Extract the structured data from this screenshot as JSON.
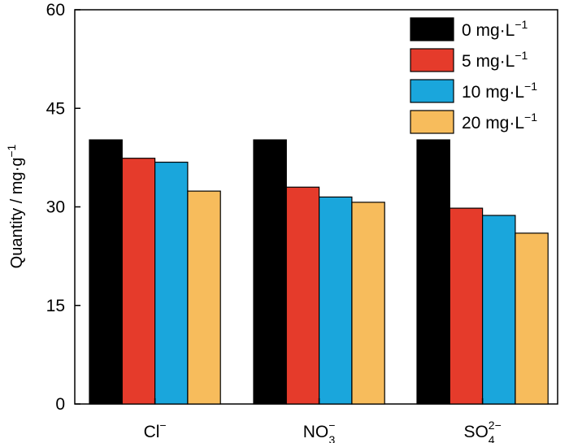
{
  "chart_data": {
    "type": "bar",
    "title": "",
    "xlabel": "",
    "ylabel": "Quantity / mg·g",
    "ylabel_sup": "−1",
    "ylim": [
      0,
      60
    ],
    "yticks": [
      "0",
      "15",
      "30",
      "45",
      "60"
    ],
    "categories": [
      {
        "base": "Cl",
        "sub": "",
        "sup": "−"
      },
      {
        "base": "NO",
        "sub": "3",
        "sup": "−"
      },
      {
        "base": "SO",
        "sub": "4",
        "sup": "2−"
      }
    ],
    "series": [
      {
        "name": "0 mg·L",
        "name_sup": "−1",
        "color": "#000000",
        "values": [
          40.2,
          40.2,
          40.2
        ]
      },
      {
        "name": "5 mg·L",
        "name_sup": "−1",
        "color": "#e53b2b",
        "values": [
          37.4,
          33.0,
          29.8
        ]
      },
      {
        "name": "10 mg·L",
        "name_sup": "−1",
        "color": "#1aa6dc",
        "values": [
          36.8,
          31.5,
          28.7
        ]
      },
      {
        "name": "20 mg·L",
        "name_sup": "−1",
        "color": "#f7bc5c",
        "values": [
          32.4,
          30.7,
          26.0
        ]
      }
    ],
    "grid": false,
    "legend_position": "top-right"
  }
}
